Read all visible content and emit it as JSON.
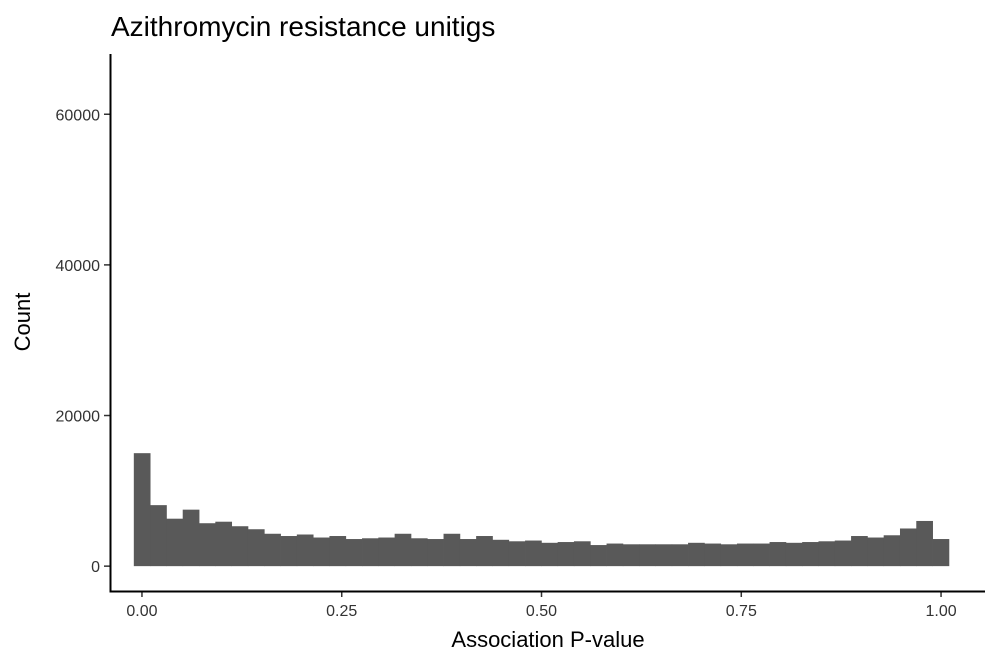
{
  "chart_data": {
    "type": "bar",
    "title": "Azithromycin resistance unitigs",
    "xlabel": "Association P-value",
    "ylabel": "Count",
    "xlim": [
      -0.04,
      1.055
    ],
    "ylim": [
      -3300,
      68000
    ],
    "x_ticks": [
      0,
      0.25,
      0.5,
      0.75,
      1
    ],
    "x_tick_labels": [
      "0.00",
      "0.25",
      "0.50",
      "0.75",
      "1.00"
    ],
    "y_ticks": [
      0,
      20000,
      40000,
      60000
    ],
    "y_tick_labels": [
      "0",
      "20000",
      "40000",
      "60000"
    ],
    "grid": false,
    "legend": "none",
    "bar_color": "#595959",
    "bin_width": 0.0204,
    "bin_start": -0.0102,
    "values": [
      15000,
      8100,
      6300,
      7500,
      5700,
      5900,
      5300,
      4900,
      4300,
      4000,
      4200,
      3800,
      4000,
      3600,
      3700,
      3800,
      4300,
      3700,
      3600,
      4300,
      3600,
      4000,
      3500,
      3300,
      3400,
      3100,
      3200,
      3300,
      2800,
      3000,
      2900,
      2900,
      2900,
      2900,
      3100,
      3000,
      2900,
      3000,
      3000,
      3200,
      3100,
      3200,
      3300,
      3400,
      4000,
      3800,
      4100,
      5000,
      6000,
      3600
    ]
  }
}
